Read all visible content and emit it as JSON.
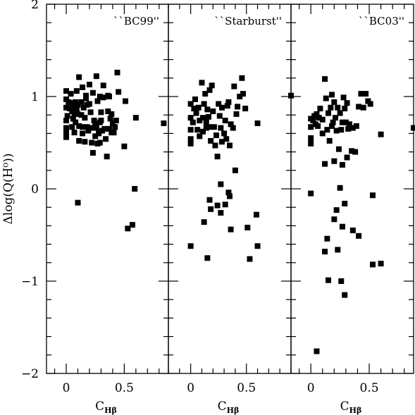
{
  "chart_data": {
    "type": "scatter",
    "ylabel": "Δlog(Q(H⁰))",
    "ylim": [
      -2,
      2
    ],
    "y_ticks": [
      {
        "value": 2,
        "label": "2"
      },
      {
        "value": 1,
        "label": "1"
      },
      {
        "value": 0,
        "label": "0"
      },
      {
        "value": -1,
        "label": "−1"
      },
      {
        "value": -2,
        "label": "−2"
      }
    ],
    "panels": [
      {
        "label": "``BC99''",
        "xlabel": "C",
        "xlabel_sub": "Hβ",
        "xlim": [
          -0.17,
          0.88
        ],
        "x_ticks": [
          {
            "value": 0,
            "label": "0"
          },
          {
            "value": 0.5,
            "label": "0.5"
          }
        ],
        "points": [
          [
            0.0,
            1.06
          ],
          [
            0.0,
            0.97
          ],
          [
            0.02,
            0.94
          ],
          [
            0.0,
            0.88
          ],
          [
            0.03,
            0.87
          ],
          [
            0.01,
            0.79
          ],
          [
            0.0,
            0.74
          ],
          [
            0.0,
            0.66
          ],
          [
            0.0,
            0.62
          ],
          [
            0.0,
            0.59
          ],
          [
            0.0,
            0.56
          ],
          [
            0.04,
            1.03
          ],
          [
            0.05,
            0.93
          ],
          [
            0.06,
            0.89
          ],
          [
            0.05,
            0.84
          ],
          [
            0.07,
            0.81
          ],
          [
            0.06,
            0.76
          ],
          [
            0.05,
            0.67
          ],
          [
            0.07,
            0.61
          ],
          [
            0.08,
            0.72
          ],
          [
            0.08,
            0.94
          ],
          [
            0.09,
            0.87
          ],
          [
            0.09,
            1.06
          ],
          [
            0.1,
            0.91
          ],
          [
            0.1,
            0.81
          ],
          [
            0.11,
            1.21
          ],
          [
            0.11,
            0.68
          ],
          [
            0.11,
            0.52
          ],
          [
            0.13,
            0.94
          ],
          [
            0.13,
            0.8
          ],
          [
            0.14,
            1.1
          ],
          [
            0.14,
            0.67
          ],
          [
            0.14,
            0.6
          ],
          [
            0.15,
            0.88
          ],
          [
            0.16,
            0.77
          ],
          [
            0.16,
            0.51
          ],
          [
            0.17,
            1.01
          ],
          [
            0.17,
            0.98
          ],
          [
            0.18,
            0.91
          ],
          [
            0.18,
            0.67
          ],
          [
            0.19,
            0.63
          ],
          [
            0.2,
            1.13
          ],
          [
            0.2,
            0.92
          ],
          [
            0.21,
            0.83
          ],
          [
            0.22,
            0.66
          ],
          [
            0.22,
            0.5
          ],
          [
            0.23,
            1.04
          ],
          [
            0.23,
            0.39
          ],
          [
            0.24,
            0.74
          ],
          [
            0.25,
            0.7
          ],
          [
            0.25,
            0.57
          ],
          [
            0.26,
            1.22
          ],
          [
            0.26,
            0.66
          ],
          [
            0.27,
            0.95
          ],
          [
            0.27,
            0.49
          ],
          [
            0.28,
            0.6
          ],
          [
            0.29,
            1.0
          ],
          [
            0.29,
            0.72
          ],
          [
            0.29,
            0.5
          ],
          [
            0.3,
            0.83
          ],
          [
            0.3,
            0.74
          ],
          [
            0.31,
            0.63
          ],
          [
            0.32,
            1.12
          ],
          [
            0.32,
            0.99
          ],
          [
            0.33,
            0.65
          ],
          [
            0.34,
            0.54
          ],
          [
            0.35,
            0.35
          ],
          [
            0.36,
            0.84
          ],
          [
            0.36,
            1.01
          ],
          [
            0.37,
            1.0
          ],
          [
            0.37,
            0.65
          ],
          [
            0.38,
            0.76
          ],
          [
            0.39,
            0.61
          ],
          [
            0.39,
            0.81
          ],
          [
            0.4,
            0.71
          ],
          [
            0.41,
            0.61
          ],
          [
            0.42,
            0.67
          ],
          [
            0.43,
            0.74
          ],
          [
            0.44,
            1.26
          ],
          [
            0.45,
            1.05
          ],
          [
            0.5,
            0.46
          ],
          [
            0.51,
            0.95
          ],
          [
            0.6,
            0.77
          ],
          [
            0.84,
            0.71
          ],
          [
            0.1,
            -0.15
          ],
          [
            0.53,
            -0.43
          ],
          [
            0.57,
            -0.39
          ],
          [
            0.59,
            0.0
          ]
        ]
      },
      {
        "label": "``Starburst''",
        "xlabel": "C",
        "xlabel_sub": "Hβ",
        "xlim": [
          -0.2,
          0.9
        ],
        "x_ticks": [
          {
            "value": 0,
            "label": "0"
          },
          {
            "value": 0.5,
            "label": "0.5"
          }
        ],
        "points": [
          [
            0.0,
            0.92
          ],
          [
            0.0,
            0.77
          ],
          [
            0.0,
            0.64
          ],
          [
            0.0,
            0.54
          ],
          [
            0.0,
            0.49
          ],
          [
            0.02,
            0.72
          ],
          [
            0.03,
            0.87
          ],
          [
            0.04,
            0.97
          ],
          [
            0.05,
            0.82
          ],
          [
            0.06,
            0.64
          ],
          [
            0.07,
            0.88
          ],
          [
            0.08,
            0.74
          ],
          [
            0.08,
            0.57
          ],
          [
            0.1,
            1.15
          ],
          [
            0.11,
            0.77
          ],
          [
            0.11,
            0.62
          ],
          [
            0.12,
            0.92
          ],
          [
            0.13,
            1.03
          ],
          [
            0.14,
            0.66
          ],
          [
            0.14,
            0.72
          ],
          [
            0.15,
            0.86
          ],
          [
            0.16,
            0.78
          ],
          [
            0.17,
            1.07
          ],
          [
            0.17,
            0.67
          ],
          [
            0.18,
            0.52
          ],
          [
            0.19,
            1.12
          ],
          [
            0.2,
            0.84
          ],
          [
            0.21,
            0.67
          ],
          [
            0.22,
            0.47
          ],
          [
            0.23,
            0.58
          ],
          [
            0.24,
            0.35
          ],
          [
            0.25,
            0.92
          ],
          [
            0.26,
            0.79
          ],
          [
            0.27,
            0.66
          ],
          [
            0.28,
            0.88
          ],
          [
            0.28,
            0.51
          ],
          [
            0.3,
            0.6
          ],
          [
            0.31,
            0.74
          ],
          [
            0.32,
            0.54
          ],
          [
            0.33,
            0.9
          ],
          [
            0.34,
            0.94
          ],
          [
            0.35,
            0.47
          ],
          [
            0.36,
            0.7
          ],
          [
            0.38,
            0.66
          ],
          [
            0.39,
            1.11
          ],
          [
            0.41,
            0.81
          ],
          [
            0.42,
            0.89
          ],
          [
            0.44,
            1.0
          ],
          [
            0.46,
            1.2
          ],
          [
            0.47,
            1.03
          ],
          [
            0.49,
            0.87
          ],
          [
            0.6,
            0.71
          ],
          [
            0.9,
            1.01
          ],
          [
            0.27,
            0.05
          ],
          [
            0.34,
            -0.04
          ],
          [
            0.35,
            -0.08
          ],
          [
            0.4,
            0.2
          ],
          [
            0.17,
            -0.12
          ],
          [
            0.18,
            -0.22
          ],
          [
            0.24,
            -0.18
          ],
          [
            0.27,
            -0.26
          ],
          [
            0.31,
            -0.17
          ],
          [
            0.59,
            -0.28
          ],
          [
            0.12,
            -0.36
          ],
          [
            0.36,
            -0.44
          ],
          [
            0.51,
            -0.42
          ],
          [
            0.0,
            -0.62
          ],
          [
            0.15,
            -0.75
          ],
          [
            0.53,
            -0.76
          ],
          [
            0.6,
            -0.62
          ]
        ]
      },
      {
        "label": "``BC03''",
        "xlabel": "C",
        "xlabel_sub": "Hβ",
        "xlim": [
          -0.17,
          0.88
        ],
        "x_ticks": [
          {
            "value": 0,
            "label": "0"
          },
          {
            "value": 0.5,
            "label": "0.5"
          }
        ],
        "points": [
          [
            0.0,
            0.76
          ],
          [
            0.0,
            0.67
          ],
          [
            0.0,
            0.55
          ],
          [
            0.0,
            0.49
          ],
          [
            0.02,
            0.74
          ],
          [
            0.03,
            0.79
          ],
          [
            0.04,
            0.7
          ],
          [
            0.05,
            0.81
          ],
          [
            0.06,
            0.68
          ],
          [
            0.07,
            0.77
          ],
          [
            0.08,
            0.87
          ],
          [
            0.1,
            0.75
          ],
          [
            0.1,
            0.6
          ],
          [
            0.12,
            1.19
          ],
          [
            0.13,
            0.98
          ],
          [
            0.14,
            0.64
          ],
          [
            0.15,
            0.82
          ],
          [
            0.16,
            0.52
          ],
          [
            0.17,
            0.88
          ],
          [
            0.18,
            1.02
          ],
          [
            0.18,
            0.68
          ],
          [
            0.19,
            0.72
          ],
          [
            0.2,
            0.94
          ],
          [
            0.21,
            0.77
          ],
          [
            0.22,
            0.63
          ],
          [
            0.23,
            0.88
          ],
          [
            0.24,
            0.43
          ],
          [
            0.25,
            0.82
          ],
          [
            0.26,
            0.64
          ],
          [
            0.27,
            0.72
          ],
          [
            0.28,
            0.99
          ],
          [
            0.29,
            0.87
          ],
          [
            0.3,
            0.72
          ],
          [
            0.31,
            0.93
          ],
          [
            0.32,
            0.65
          ],
          [
            0.33,
            0.7
          ],
          [
            0.35,
            0.41
          ],
          [
            0.36,
            0.66
          ],
          [
            0.38,
            0.4
          ],
          [
            0.39,
            0.68
          ],
          [
            0.41,
            0.89
          ],
          [
            0.43,
            1.03
          ],
          [
            0.45,
            0.88
          ],
          [
            0.47,
            1.03
          ],
          [
            0.49,
            0.95
          ],
          [
            0.51,
            0.92
          ],
          [
            0.6,
            0.59
          ],
          [
            0.88,
            0.66
          ],
          [
            0.12,
            0.27
          ],
          [
            0.2,
            0.3
          ],
          [
            0.27,
            0.26
          ],
          [
            0.31,
            0.34
          ],
          [
            0.0,
            -0.05
          ],
          [
            0.25,
            0.01
          ],
          [
            0.53,
            -0.07
          ],
          [
            0.29,
            -0.16
          ],
          [
            0.22,
            -0.23
          ],
          [
            0.2,
            -0.33
          ],
          [
            0.27,
            -0.41
          ],
          [
            0.36,
            -0.45
          ],
          [
            0.41,
            -0.51
          ],
          [
            0.14,
            -0.54
          ],
          [
            0.12,
            -0.68
          ],
          [
            0.23,
            -0.66
          ],
          [
            0.53,
            -0.82
          ],
          [
            0.6,
            -0.81
          ],
          [
            0.15,
            -0.99
          ],
          [
            0.26,
            -1.0
          ],
          [
            0.29,
            -1.15
          ],
          [
            0.05,
            -1.76
          ]
        ]
      }
    ]
  }
}
